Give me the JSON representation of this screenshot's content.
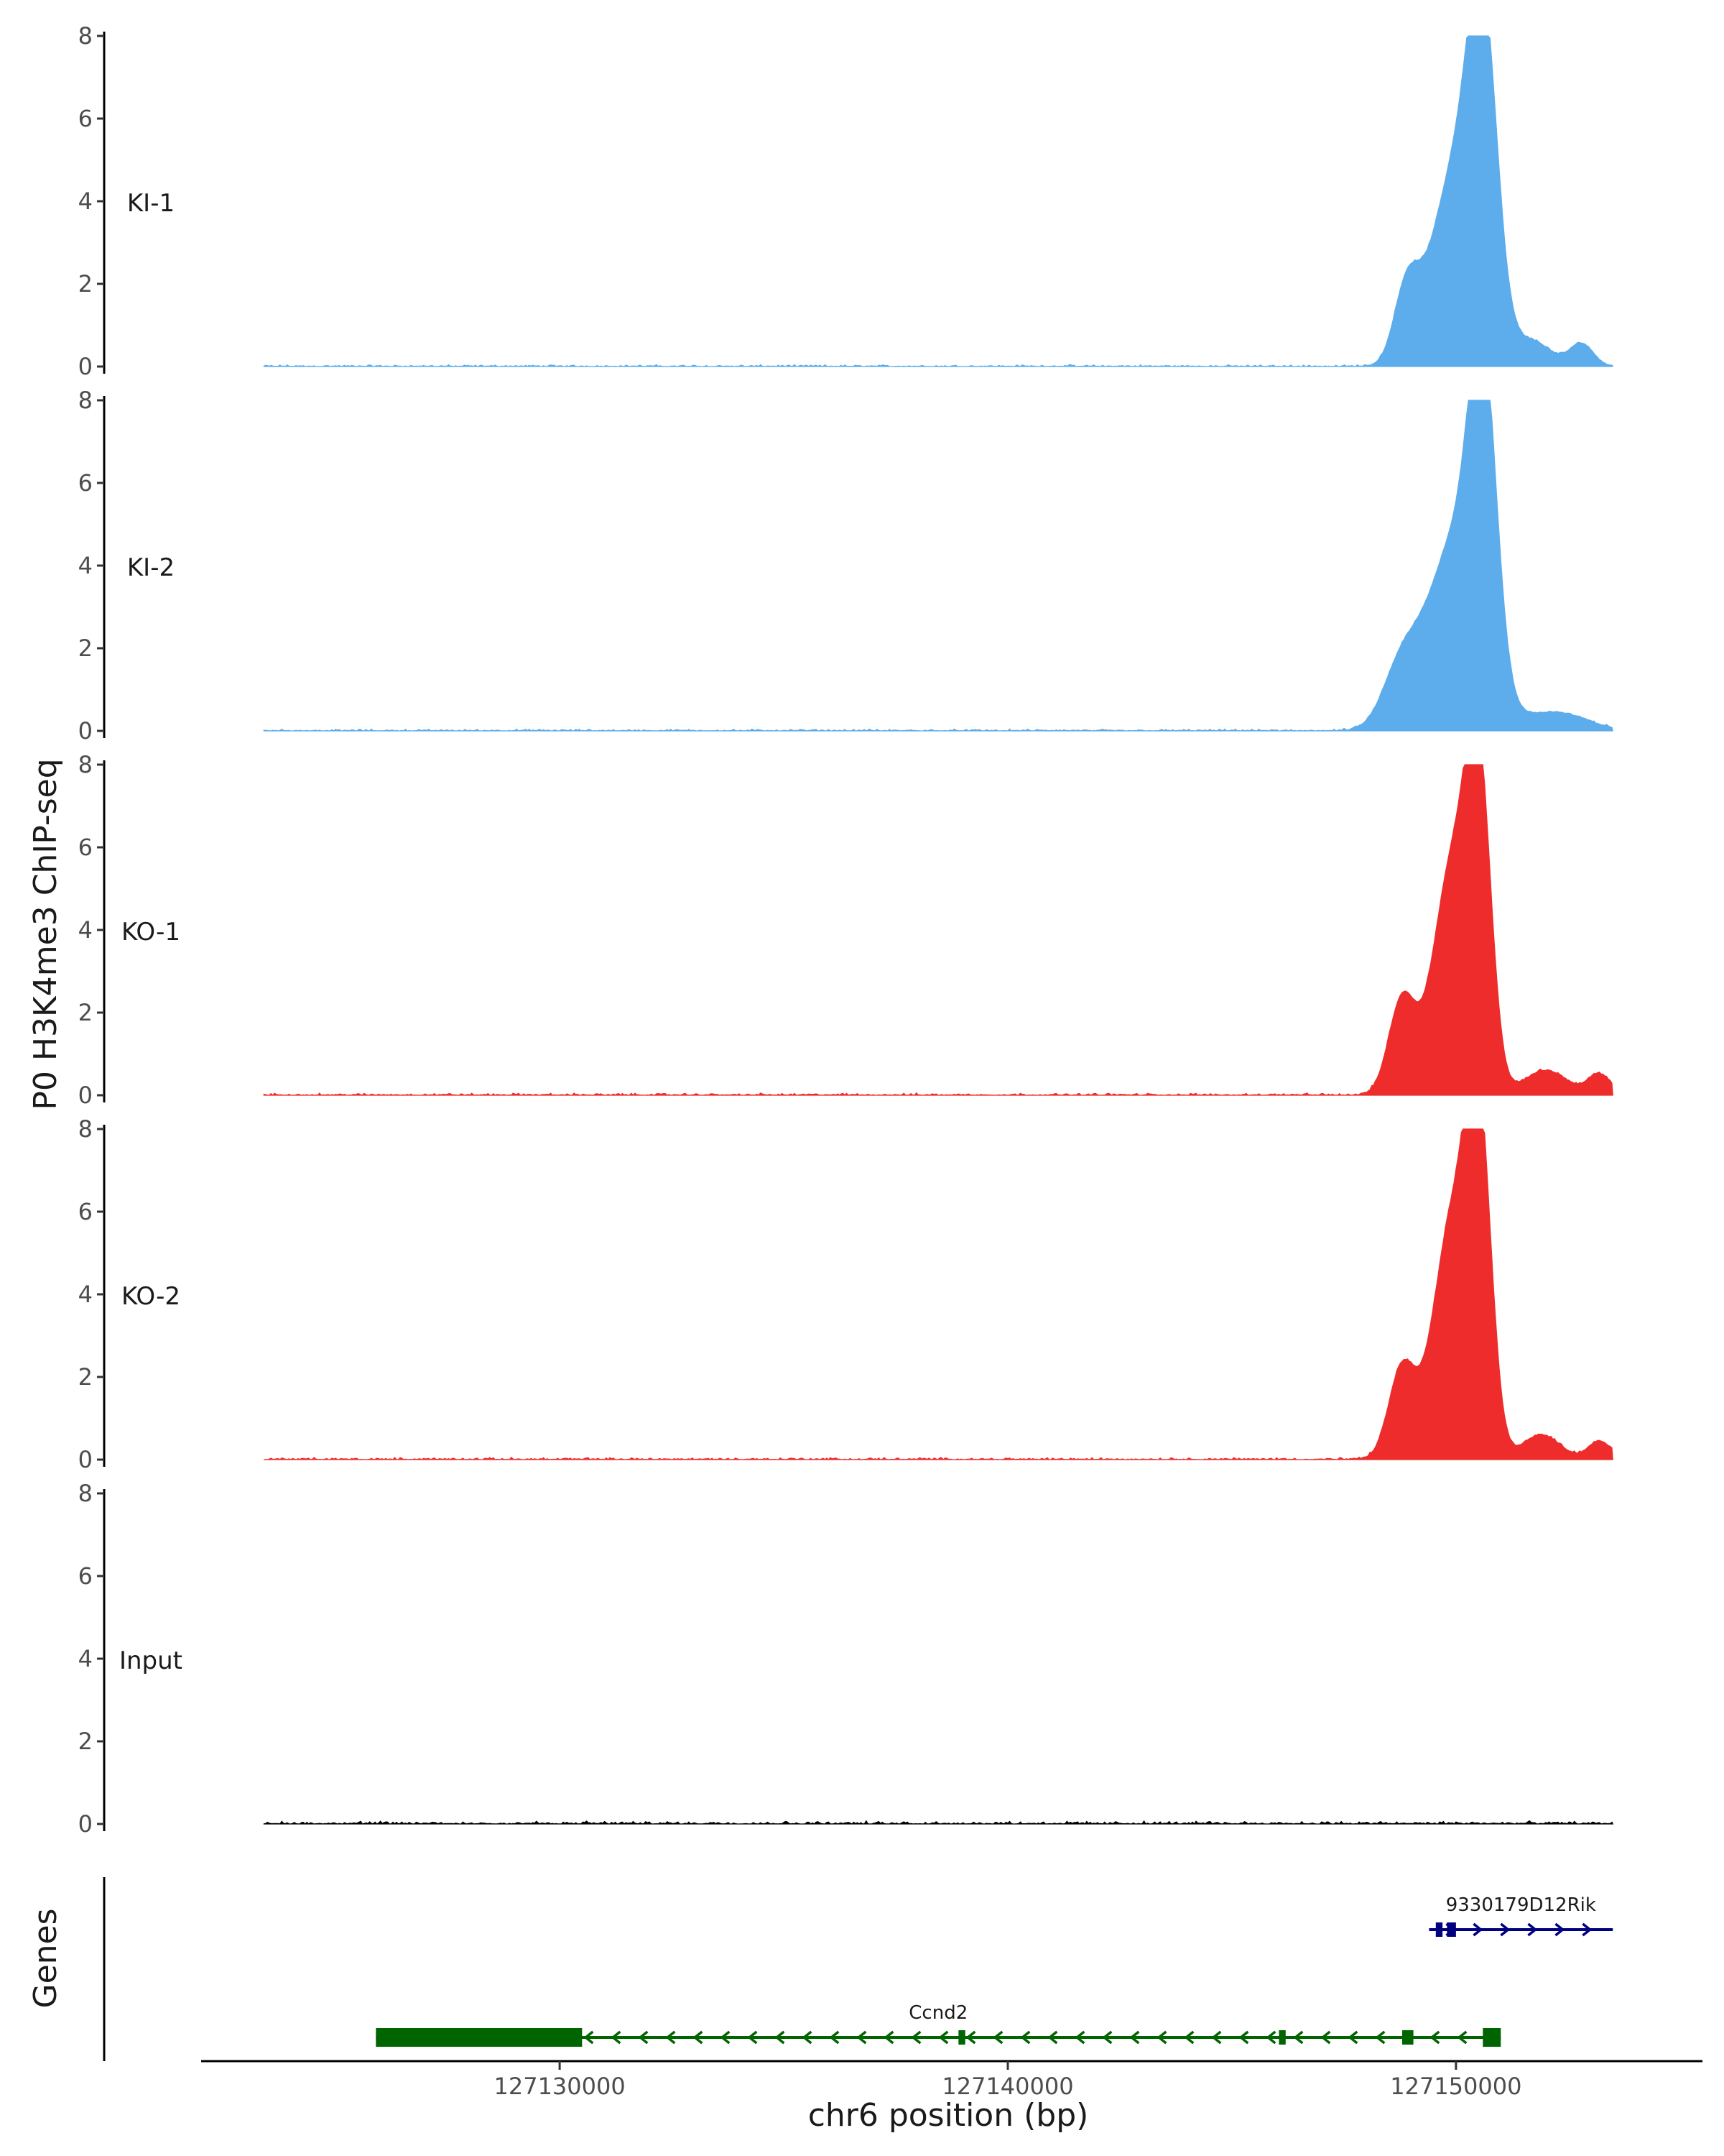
{
  "chart_data": {
    "type": "area",
    "title": "",
    "ylabel": "P0 H3K4me3 ChIP-seq",
    "xlabel": "chr6 position (bp)",
    "genes_label": "Genes",
    "xlim": [
      127122000,
      127155500
    ],
    "data_xlim": [
      127123400,
      127153500
    ],
    "ylim": [
      0,
      8
    ],
    "yticks": [
      0,
      2,
      4,
      6,
      8
    ],
    "xticks": [
      127130000,
      127140000,
      127150000
    ],
    "xtick_labels": [
      "127130000",
      "127140000",
      "127150000"
    ],
    "tracks": [
      {
        "name": "KI-1",
        "color": "#5DADEC",
        "peaks": [
          [
            127148900,
            1.7,
            280
          ],
          [
            127150000,
            4.7,
            550
          ],
          [
            127150600,
            6.9,
            320
          ],
          [
            127151700,
            0.6,
            420
          ],
          [
            127152800,
            0.55,
            260
          ]
        ],
        "noise": 0.05
      },
      {
        "name": "KI-2",
        "color": "#5DADEC",
        "peaks": [
          [
            127148800,
            1.5,
            420
          ],
          [
            127150000,
            4.6,
            600
          ],
          [
            127150600,
            7.0,
            300
          ],
          [
            127152200,
            0.45,
            700
          ]
        ],
        "noise": 0.05
      },
      {
        "name": "KO-1",
        "color": "#EE2C2C",
        "peaks": [
          [
            127148800,
            2.3,
            300
          ],
          [
            127149900,
            5.4,
            420
          ],
          [
            127150500,
            7.2,
            280
          ],
          [
            127152000,
            0.6,
            480
          ],
          [
            127153200,
            0.5,
            250
          ]
        ],
        "noise": 0.06
      },
      {
        "name": "KO-2",
        "color": "#EE2C2C",
        "peaks": [
          [
            127148800,
            2.2,
            300
          ],
          [
            127149900,
            5.6,
            420
          ],
          [
            127150500,
            7.6,
            280
          ],
          [
            127151900,
            0.6,
            420
          ],
          [
            127153200,
            0.45,
            250
          ]
        ],
        "noise": 0.06
      },
      {
        "name": "Input",
        "color": "#000000",
        "peaks": [],
        "noise": 0.08
      }
    ],
    "genes": [
      {
        "name": "Ccnd2",
        "strand": "-",
        "color": "#006400",
        "row": 2,
        "start": 127125900,
        "end": 127151000,
        "exons": [
          [
            127125900,
            127130500
          ],
          [
            127138900,
            127139050
          ],
          [
            127146050,
            127146200
          ],
          [
            127148800,
            127149050
          ],
          [
            127150600,
            127151000
          ]
        ],
        "thick_exons": [
          0,
          4
        ]
      },
      {
        "name": "9330179D12Rik",
        "strand": "+",
        "color": "#000080",
        "row": 1,
        "start": 127149400,
        "end": 127153500,
        "exons": [
          [
            127149550,
            127149700
          ],
          [
            127149800,
            127150000
          ]
        ],
        "thick_exons": []
      }
    ]
  }
}
